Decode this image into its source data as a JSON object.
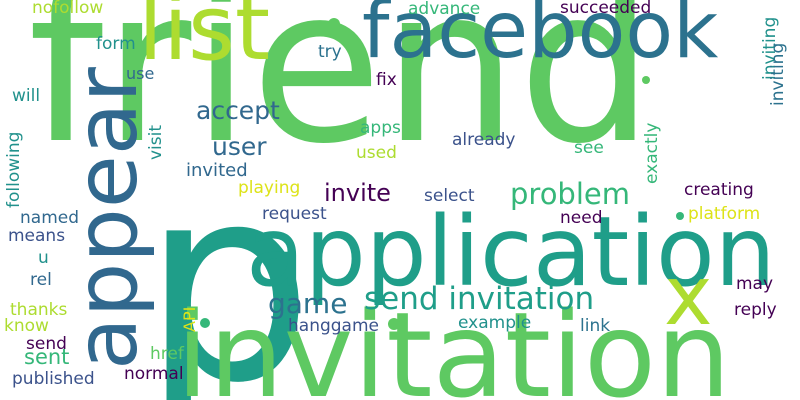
{
  "title": "",
  "words": {
    "friend": "friend",
    "invitation": "invitation",
    "application": "application",
    "facebook": "facebook",
    "p": "p",
    "list": "list",
    "appear": "appear",
    "x": "x",
    "game": "game",
    "send_invitation": "send invitation",
    "problem": "problem",
    "user": "user",
    "accept": "accept",
    "invite": "invite",
    "invited": "invited",
    "sent": "sent",
    "nofollow": "nofollow",
    "advance": "advance",
    "succeeded": "succeeded",
    "form": "form",
    "try": "try",
    "use": "use",
    "fix": "fix",
    "will": "will",
    "apps": "apps",
    "used": "used",
    "already": "already",
    "see": "see",
    "visit": "visit",
    "exactly": "exactly",
    "inviting_top": "inviting",
    "inviting": "inviting",
    "playing": "playing",
    "select": "select",
    "creating": "creating",
    "following": "following",
    "named": "named",
    "request": "request",
    "need": "need",
    "platform": "platform",
    "means": "means",
    "u": "u",
    "rel": "rel",
    "may": "may",
    "thanks": "thanks",
    "know": "know",
    "api": "API",
    "hanggame": "hanggame",
    "example": "example",
    "link": "link",
    "reply": "reply",
    "send": "send",
    "href": "href",
    "normal": "normal",
    "published": "published"
  },
  "colors": {
    "dark_purple": "#440154",
    "indigo": "#3b528b",
    "blue": "#31688e",
    "teal_blue": "#2c728e",
    "teal": "#21918c",
    "green_teal": "#1f9e89",
    "sea_green": "#35b779",
    "green": "#5ec962",
    "yellow_green": "#addc30",
    "yellow": "#dde318"
  }
}
